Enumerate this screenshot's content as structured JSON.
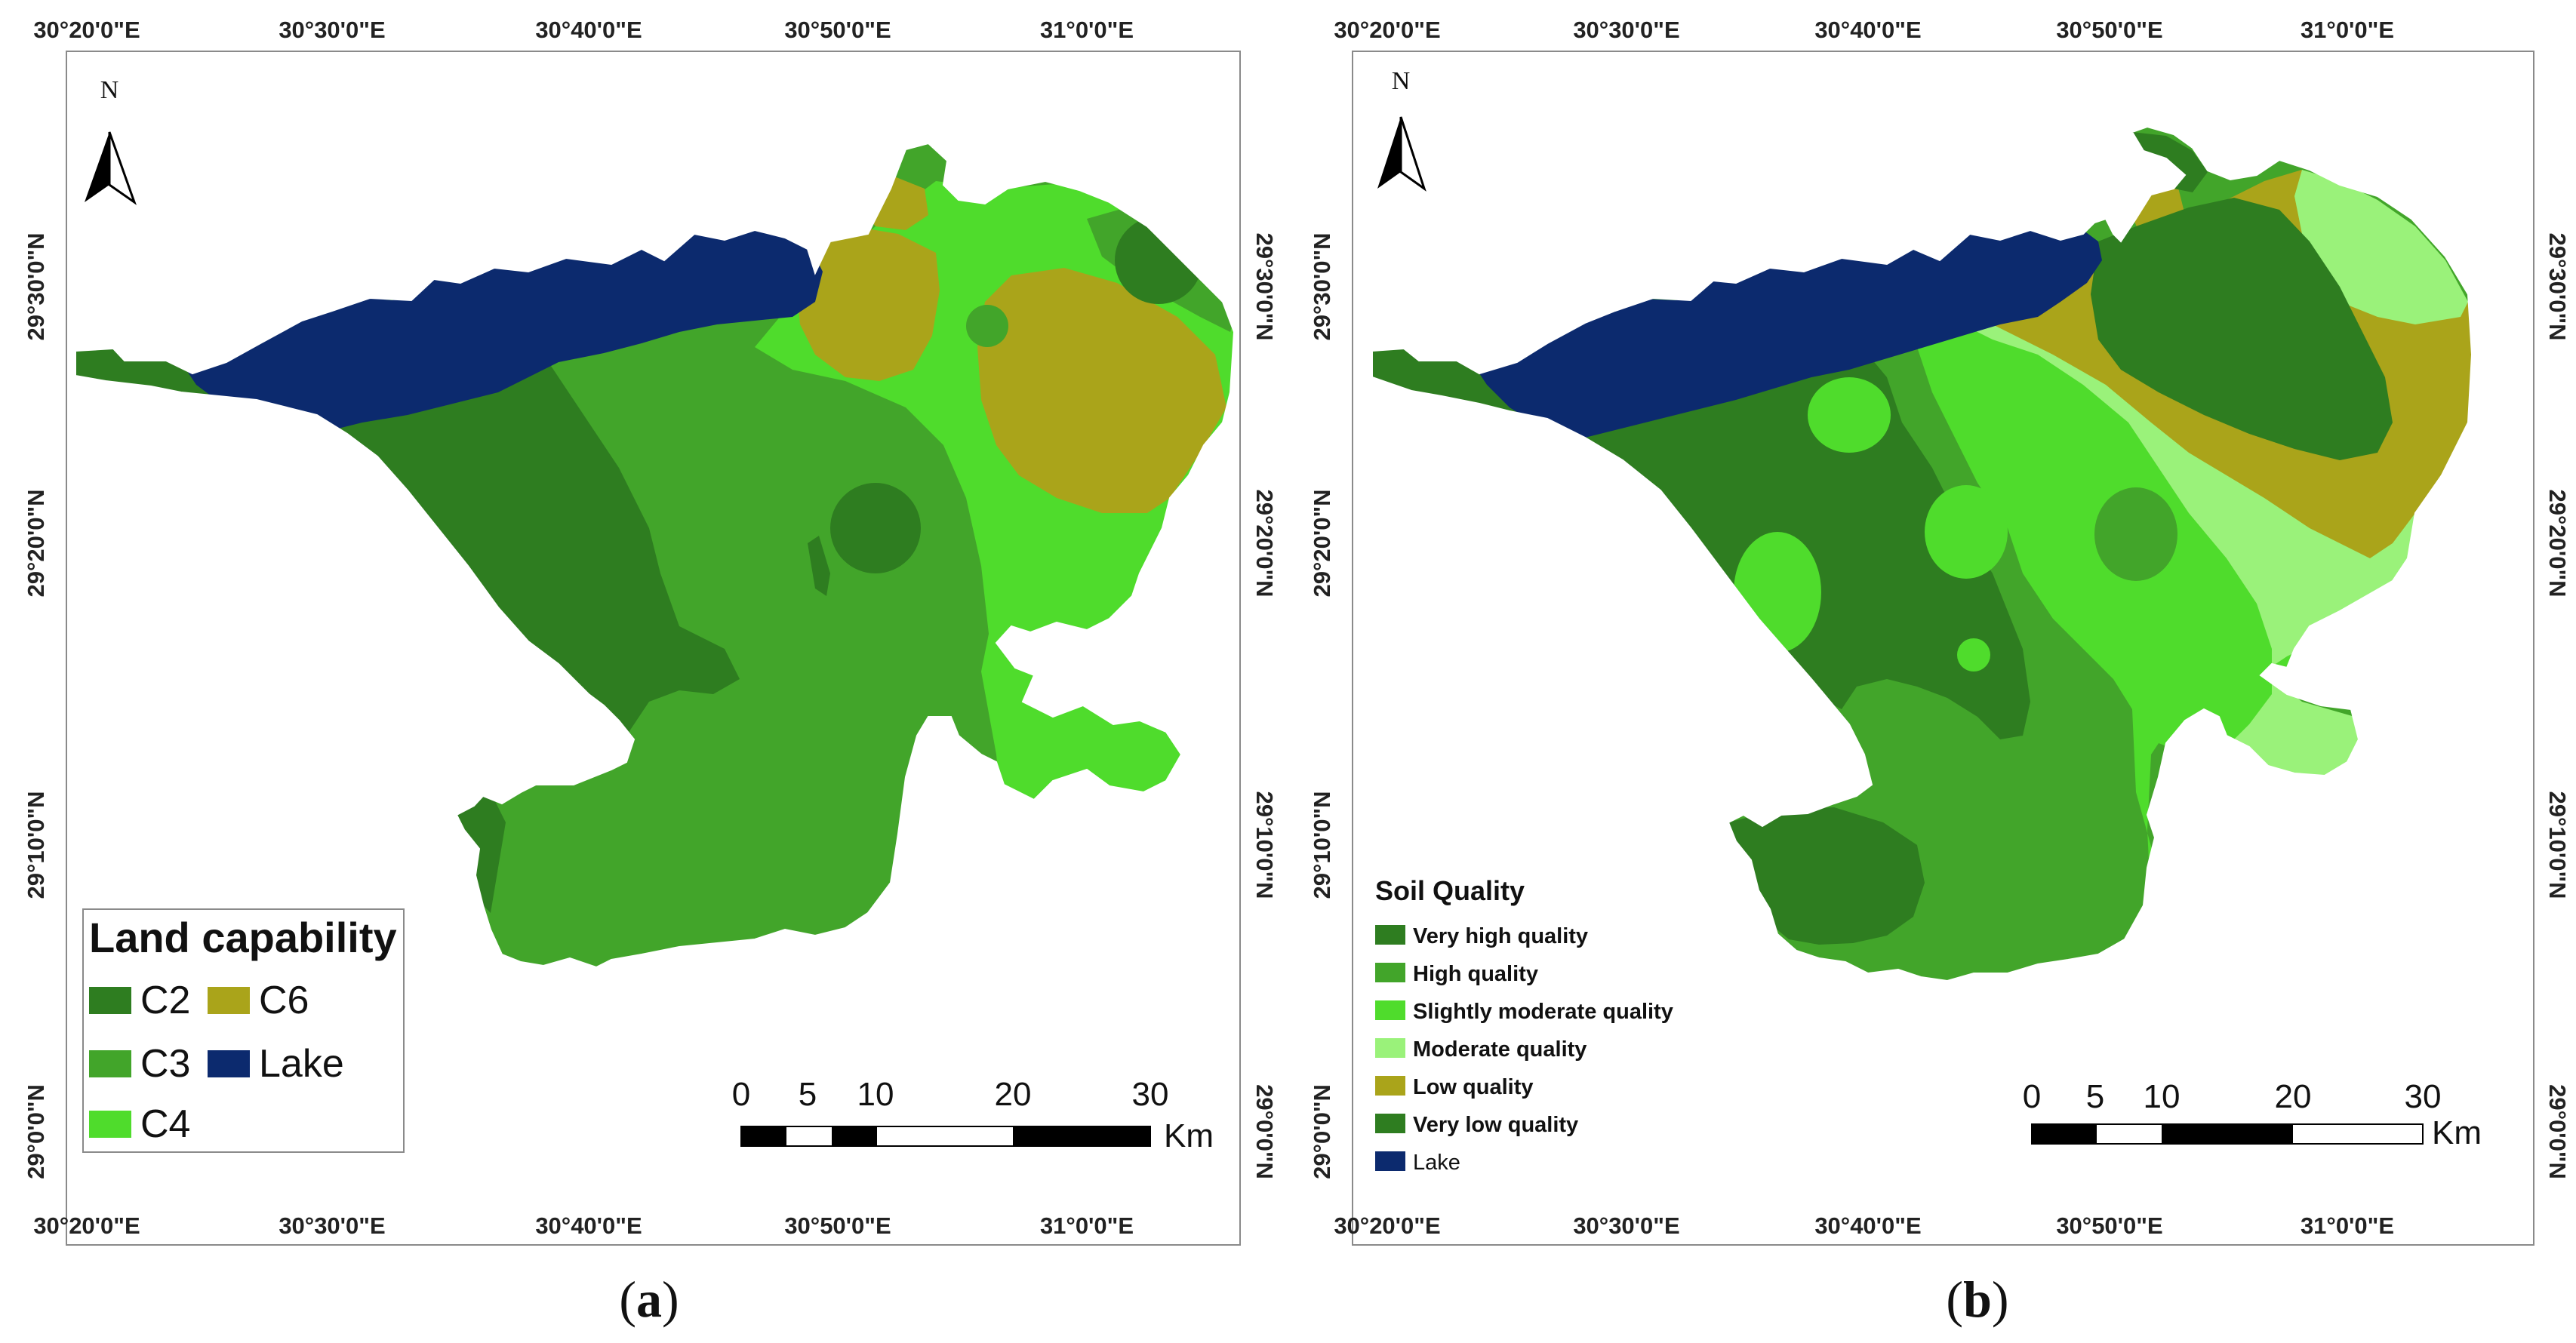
{
  "colors": {
    "very_high": "#2e7d20",
    "high": "#42a52a",
    "slightly_moderate": "#4fdc2c",
    "moderate": "#9af27a",
    "low": "#aaa41a",
    "lake": "#0c2a6e"
  },
  "panel_a": {
    "caption_letter": "a",
    "caption_open": "(",
    "caption_close": ")",
    "north_label": "N",
    "top_lon_labels": [
      "30°20'0\"E",
      "30°30'0\"E",
      "30°40'0\"E",
      "30°50'0\"E",
      "31°0'0\"E"
    ],
    "bottom_lon_labels": [
      "30°20'0\"E",
      "30°30'0\"E",
      "30°40'0\"E",
      "30°50'0\"E",
      "31°0'0\"E"
    ],
    "left_lat_labels": [
      "29°30'0\"N",
      "29°20'0\"N",
      "29°10'0\"N",
      "29°0'0\"N"
    ],
    "right_lat_labels": [
      "29°30'0\"N",
      "29°20'0\"N",
      "29°10'0\"N",
      "29°0'0\"N"
    ],
    "legend": {
      "title": "Land capability",
      "items": [
        {
          "label": "C2",
          "color": "#2e7d20"
        },
        {
          "label": "C6",
          "color": "#aaa41a"
        },
        {
          "label": "C3",
          "color": "#42a52a"
        },
        {
          "label": "Lake",
          "color": "#0c2a6e"
        },
        {
          "label": "C4",
          "color": "#4fdc2c"
        }
      ]
    },
    "scale": {
      "ticks": [
        "0",
        "5",
        "10",
        "20",
        "30"
      ],
      "unit": "Km"
    }
  },
  "panel_b": {
    "caption_letter": "b",
    "caption_open": "(",
    "caption_close": ")",
    "north_label": "N",
    "top_lon_labels": [
      "30°20'0\"E",
      "30°30'0\"E",
      "30°40'0\"E",
      "30°50'0\"E",
      "31°0'0\"E"
    ],
    "bottom_lon_labels": [
      "30°20'0\"E",
      "30°30'0\"E",
      "30°40'0\"E",
      "30°50'0\"E",
      "31°0'0\"E"
    ],
    "left_lat_labels": [
      "29°30'0\"N",
      "29°20'0\"N",
      "29°10'0\"N",
      "29°0'0\"N"
    ],
    "right_lat_labels": [
      "29°30'0\"N",
      "29°20'0\"N",
      "29°10'0\"N",
      "29°0'0\"N"
    ],
    "legend": {
      "title": "Soil Quality",
      "items": [
        {
          "label": "Very high quality",
          "color": "#2e7d20"
        },
        {
          "label": "High quality",
          "color": "#42a52a"
        },
        {
          "label": "Slightly moderate quality",
          "color": "#4fdc2c"
        },
        {
          "label": "Moderate quality",
          "color": "#9af27a"
        },
        {
          "label": "Low quality",
          "color": "#aaa41a"
        },
        {
          "label": "Very low quality",
          "color": "#2e7d20"
        },
        {
          "label": "Lake",
          "color": "#0c2a6e"
        }
      ]
    },
    "scale": {
      "ticks": [
        "0",
        "5",
        "10",
        "20",
        "30"
      ],
      "unit": "Km"
    }
  }
}
